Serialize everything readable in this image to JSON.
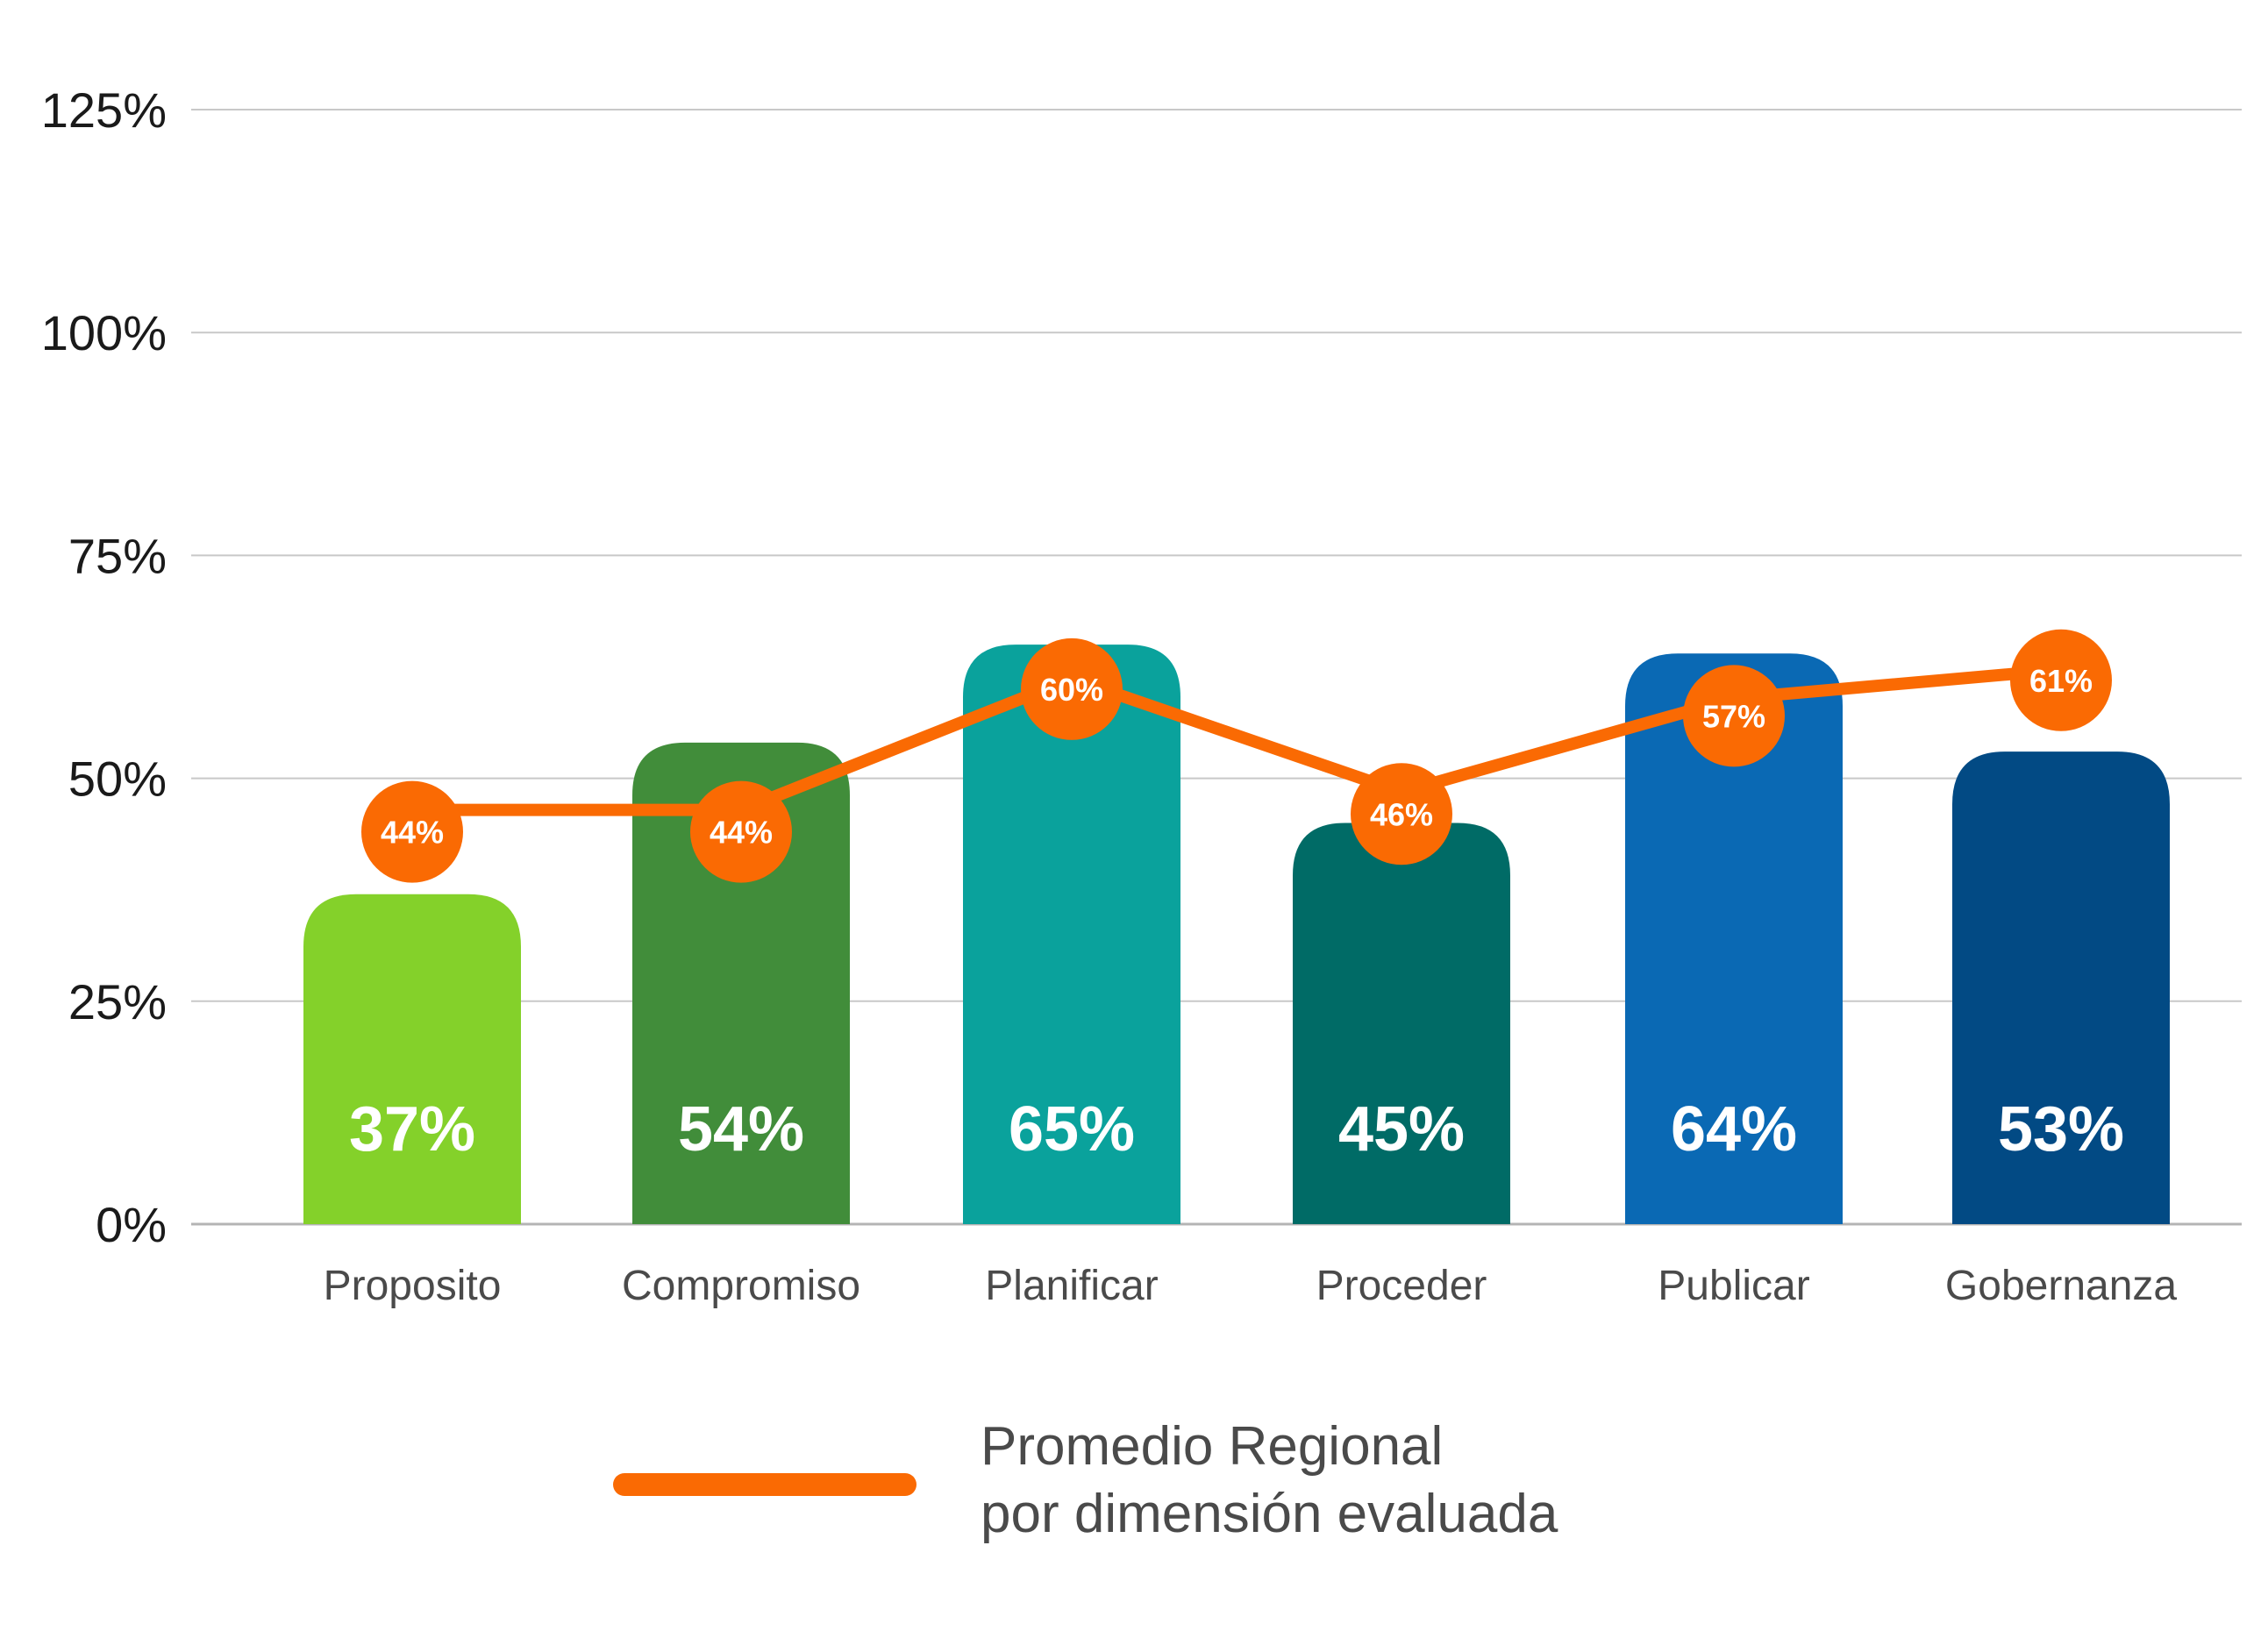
{
  "chart_data": {
    "type": "bar",
    "categories": [
      "Proposito",
      "Compromiso",
      "Planificar",
      "Proceder",
      "Publicar",
      "Gobernanza"
    ],
    "series": [
      {
        "values": [
          37,
          54,
          65,
          45,
          64,
          53
        ],
        "labels": [
          "37%",
          "54%",
          "65%",
          "45%",
          "64%",
          "53%"
        ],
        "colors": [
          "#84d12a",
          "#418d3a",
          "#0aa29c",
          "#006b66",
          "#0a69b4",
          "#024a84"
        ]
      },
      {
        "name": "Promedio Regional por dimensión evaluada",
        "type": "line",
        "values": [
          44,
          44,
          60,
          46,
          57,
          61
        ],
        "labels": [
          "44%",
          "44%",
          "60%",
          "46%",
          "57%",
          "61%"
        ],
        "color": "#fa6a03"
      }
    ],
    "ylim": [
      0,
      125
    ],
    "yticks": [
      0,
      25,
      50,
      75,
      100,
      125
    ],
    "ytick_labels": [
      "0%",
      "25%",
      "50%",
      "75%",
      "100%",
      "125%"
    ],
    "grid": true,
    "legend": {
      "placement": "bottom-center",
      "label_line1": "Promedio Regional",
      "label_line2": "por dimensión evaluada"
    },
    "colors": {
      "grid": "#c8c8c8",
      "axis": "#b4b4b4"
    }
  }
}
